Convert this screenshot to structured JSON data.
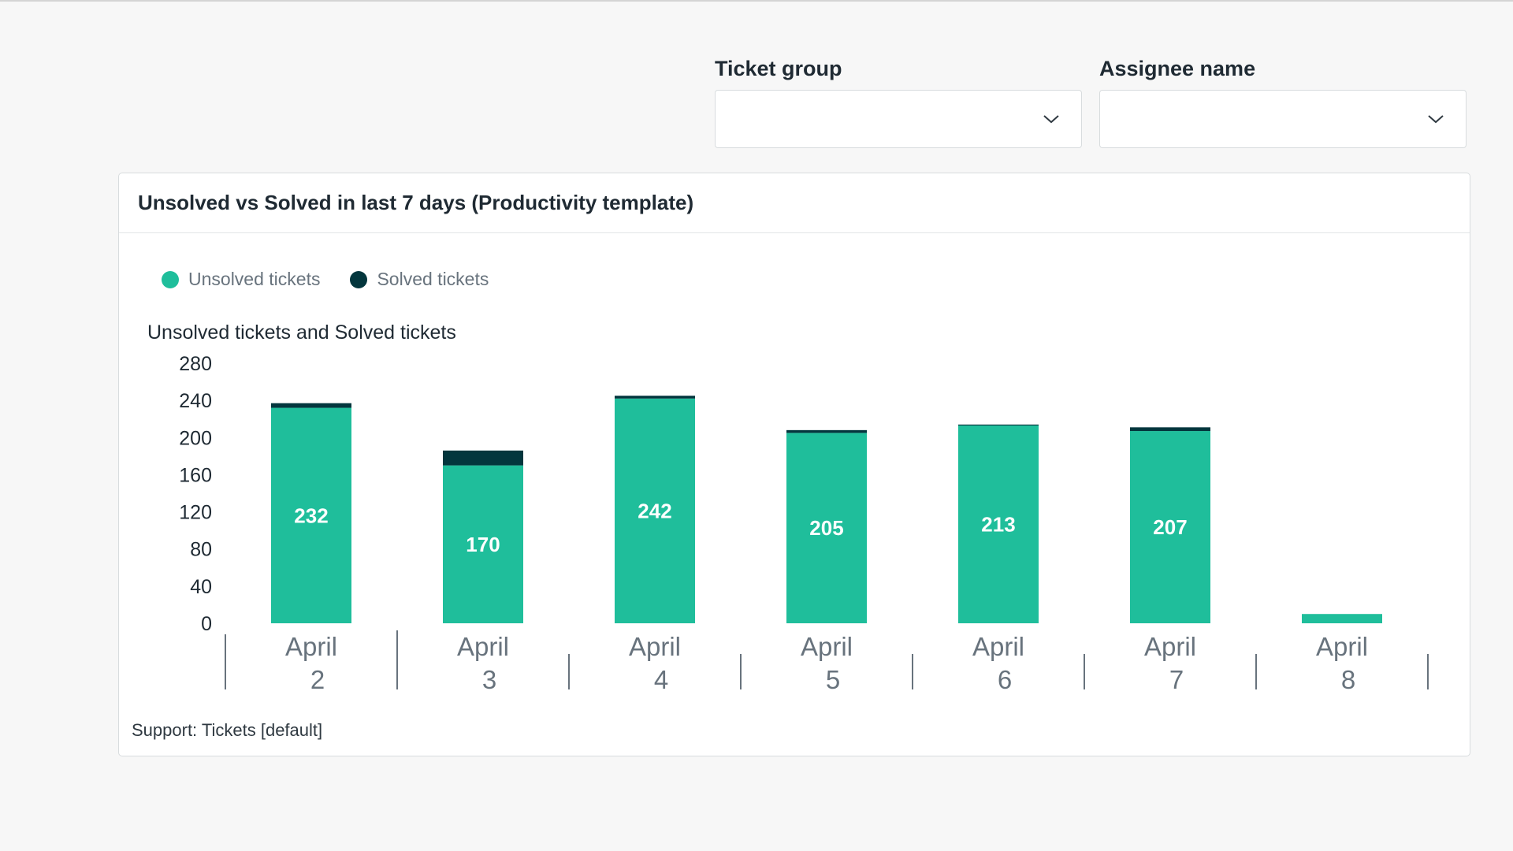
{
  "filters": {
    "ticket_group": {
      "label": "Ticket group",
      "value": ""
    },
    "assignee_name": {
      "label": "Assignee name",
      "value": ""
    }
  },
  "card": {
    "title": "Unsolved vs Solved in last 7 days (Productivity template)",
    "footer": "Support: Tickets [default]"
  },
  "icons": {
    "dropdown": "chevron-down-icon",
    "legend_marker": "circle-dot"
  },
  "colors": {
    "unsolved": "#1fbe9b",
    "solved": "#03363d",
    "background": "#f7f7f7"
  },
  "chart_data": {
    "type": "bar",
    "stacked": true,
    "ylabel": "Unsolved tickets and Solved tickets",
    "ylim": [
      0,
      280
    ],
    "yticks": [
      0,
      40,
      80,
      120,
      160,
      200,
      240,
      280
    ],
    "grid": false,
    "legend_position": "top-left",
    "categories": [
      [
        "April",
        "2"
      ],
      [
        "April",
        "3"
      ],
      [
        "April",
        "4"
      ],
      [
        "April",
        "5"
      ],
      [
        "April",
        "6"
      ],
      [
        "April",
        "7"
      ],
      [
        "April",
        "8"
      ]
    ],
    "series": [
      {
        "name": "Unsolved tickets",
        "color": "#1fbe9b",
        "values": [
          232,
          170,
          242,
          205,
          213,
          207,
          10
        ],
        "labels": [
          "232",
          "170",
          "242",
          "205",
          "213",
          "207",
          ""
        ]
      },
      {
        "name": "Solved tickets",
        "color": "#03363d",
        "values": [
          5,
          16,
          3,
          3,
          1,
          4,
          0
        ]
      }
    ]
  }
}
